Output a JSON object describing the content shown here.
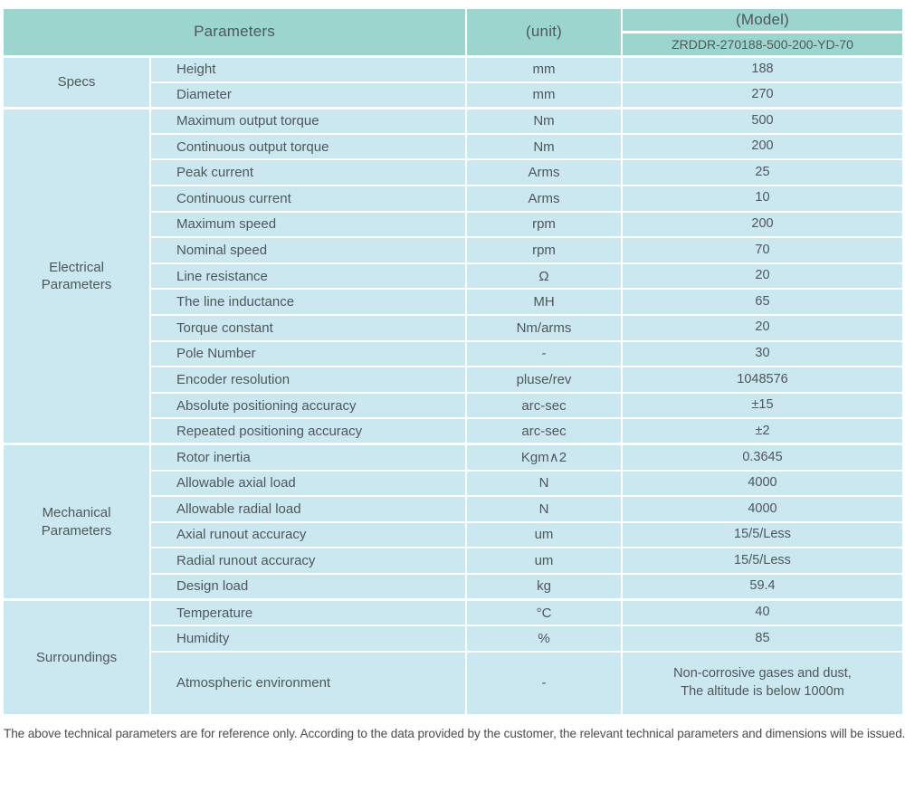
{
  "colors": {
    "header_bg": "#9bd5cd",
    "row_bg": "#cbe7ef",
    "text": "#4e575c",
    "note_text": "#4d4d4d",
    "separator": "#ffffff"
  },
  "table": {
    "header": {
      "parameters_label": "Parameters",
      "unit_label": "(unit)",
      "model_label": "(Model)",
      "model_value": "ZRDDR-270188-500-200-YD-70"
    },
    "sections": [
      {
        "label": "Specs",
        "rows": [
          {
            "name": "Height",
            "unit": "mm",
            "value": "188"
          },
          {
            "name": "Diameter",
            "unit": "mm",
            "value": "270"
          }
        ]
      },
      {
        "label": "Electrical\nParameters",
        "rows": [
          {
            "name": "Maximum output torque",
            "unit": "Nm",
            "value": "500"
          },
          {
            "name": "Continuous output torque",
            "unit": "Nm",
            "value": "200"
          },
          {
            "name": "Peak current",
            "unit": "Arms",
            "value": "25"
          },
          {
            "name": "Continuous current",
            "unit": "Arms",
            "value": "10"
          },
          {
            "name": "Maximum speed",
            "unit": "rpm",
            "value": "200"
          },
          {
            "name": "Nominal speed",
            "unit": "rpm",
            "value": "70"
          },
          {
            "name": "Line resistance",
            "unit": "Ω",
            "value": "20"
          },
          {
            "name": "The line inductance",
            "unit": "MH",
            "value": "65"
          },
          {
            "name": "Torque constant",
            "unit": "Nm/arms",
            "value": "20"
          },
          {
            "name": "Pole Number",
            "unit": "-",
            "value": "30"
          },
          {
            "name": "Encoder resolution",
            "unit": "pluse/rev",
            "value": "1048576"
          },
          {
            "name": "Absolute positioning accuracy",
            "unit": "arc-sec",
            "value": "±15"
          },
          {
            "name": "Repeated positioning accuracy",
            "unit": "arc-sec",
            "value": "±2"
          }
        ]
      },
      {
        "label": "Mechanical\nParameters",
        "rows": [
          {
            "name": "Rotor inertia",
            "unit": "Kgm∧2",
            "value": "0.3645"
          },
          {
            "name": "Allowable axial load",
            "unit": "N",
            "value": "4000"
          },
          {
            "name": "Allowable radial load",
            "unit": "N",
            "value": "4000"
          },
          {
            "name": "Axial runout accuracy",
            "unit": "um",
            "value": "15/5/Less"
          },
          {
            "name": "Radial runout accuracy",
            "unit": "um",
            "value": "15/5/Less"
          },
          {
            "name": "Design load",
            "unit": "kg",
            "value": "59.4"
          }
        ]
      },
      {
        "label": "Surroundings",
        "rows": [
          {
            "name": "Temperature",
            "unit": "°C",
            "value": "40"
          },
          {
            "name": "Humidity",
            "unit": "%",
            "value": "85"
          },
          {
            "name": "Atmospheric environment",
            "unit": "-",
            "value": "Non-corrosive gases and dust,\nThe altitude is below 1000m"
          }
        ]
      }
    ]
  },
  "footer": {
    "note": "The above technical parameters are for reference only. According to the data provided by the customer, the relevant technical parameters and dimensions will be issued."
  }
}
